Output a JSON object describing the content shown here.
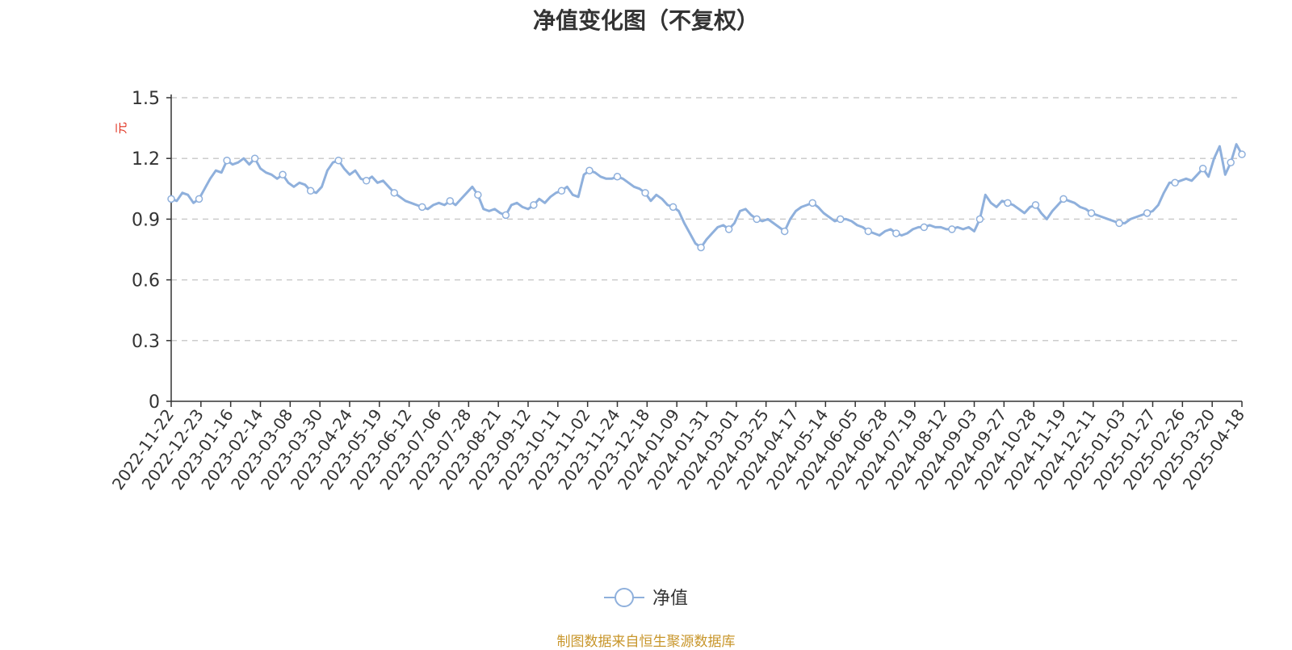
{
  "title": "净值变化图（不复权）",
  "source": "制图数据来自恒生聚源数据库",
  "source_color": "#c8962b",
  "chart_data": {
    "type": "line",
    "title": "净值变化图（不复权）",
    "ylabel": "元",
    "ylabel_color": "#e0301e",
    "ylim": [
      0,
      1.5
    ],
    "yticks": [
      "0",
      "0.3",
      "0.6",
      "0.9",
      "1.2",
      "1.5"
    ],
    "grid": true,
    "legend_position": "bottom-center",
    "line_color": "#8fb0dc",
    "x_tick_labels": [
      "2022-11-22",
      "2022-12-23",
      "2023-01-16",
      "2023-02-14",
      "2023-03-08",
      "2023-03-30",
      "2023-04-24",
      "2023-05-19",
      "2023-06-12",
      "2023-07-06",
      "2023-07-28",
      "2023-08-21",
      "2023-09-12",
      "2023-10-11",
      "2023-11-02",
      "2023-11-24",
      "2023-12-18",
      "2024-01-09",
      "2024-01-31",
      "2024-03-01",
      "2024-03-25",
      "2024-04-17",
      "2024-05-14",
      "2024-06-05",
      "2024-06-28",
      "2024-07-19",
      "2024-08-12",
      "2024-09-03",
      "2024-09-27",
      "2024-10-28",
      "2024-11-19",
      "2024-12-11",
      "2025-01-03",
      "2025-01-27",
      "2025-02-26",
      "2025-03-20",
      "2025-04-18"
    ],
    "series": [
      {
        "name": "净值",
        "values": [
          1.0,
          0.99,
          1.03,
          1.02,
          0.98,
          1.0,
          1.05,
          1.1,
          1.14,
          1.13,
          1.19,
          1.17,
          1.18,
          1.2,
          1.17,
          1.2,
          1.15,
          1.13,
          1.12,
          1.1,
          1.12,
          1.08,
          1.06,
          1.08,
          1.07,
          1.04,
          1.03,
          1.06,
          1.14,
          1.18,
          1.19,
          1.15,
          1.12,
          1.14,
          1.1,
          1.09,
          1.11,
          1.08,
          1.09,
          1.06,
          1.03,
          1.01,
          0.99,
          0.98,
          0.97,
          0.96,
          0.95,
          0.97,
          0.98,
          0.97,
          0.99,
          0.97,
          1.0,
          1.03,
          1.06,
          1.02,
          0.95,
          0.94,
          0.95,
          0.93,
          0.92,
          0.97,
          0.98,
          0.96,
          0.95,
          0.97,
          1.0,
          0.98,
          1.01,
          1.03,
          1.04,
          1.06,
          1.02,
          1.01,
          1.12,
          1.14,
          1.13,
          1.11,
          1.1,
          1.1,
          1.11,
          1.1,
          1.08,
          1.06,
          1.05,
          1.03,
          0.99,
          1.02,
          1.0,
          0.97,
          0.96,
          0.94,
          0.88,
          0.83,
          0.78,
          0.76,
          0.8,
          0.83,
          0.86,
          0.87,
          0.85,
          0.88,
          0.94,
          0.95,
          0.92,
          0.9,
          0.89,
          0.9,
          0.88,
          0.86,
          0.84,
          0.9,
          0.94,
          0.96,
          0.97,
          0.98,
          0.96,
          0.93,
          0.91,
          0.89,
          0.9,
          0.9,
          0.89,
          0.87,
          0.86,
          0.84,
          0.83,
          0.82,
          0.84,
          0.85,
          0.83,
          0.82,
          0.83,
          0.85,
          0.86,
          0.86,
          0.87,
          0.86,
          0.86,
          0.85,
          0.85,
          0.86,
          0.85,
          0.86,
          0.84,
          0.9,
          1.02,
          0.98,
          0.96,
          0.99,
          0.98,
          0.97,
          0.95,
          0.93,
          0.96,
          0.97,
          0.93,
          0.9,
          0.94,
          0.97,
          1.0,
          0.99,
          0.98,
          0.96,
          0.95,
          0.93,
          0.92,
          0.91,
          0.9,
          0.89,
          0.88,
          0.88,
          0.9,
          0.91,
          0.92,
          0.93,
          0.94,
          0.97,
          1.03,
          1.08,
          1.08,
          1.09,
          1.1,
          1.09,
          1.12,
          1.15,
          1.11,
          1.2,
          1.26,
          1.12,
          1.18,
          1.27,
          1.22
        ]
      }
    ]
  }
}
